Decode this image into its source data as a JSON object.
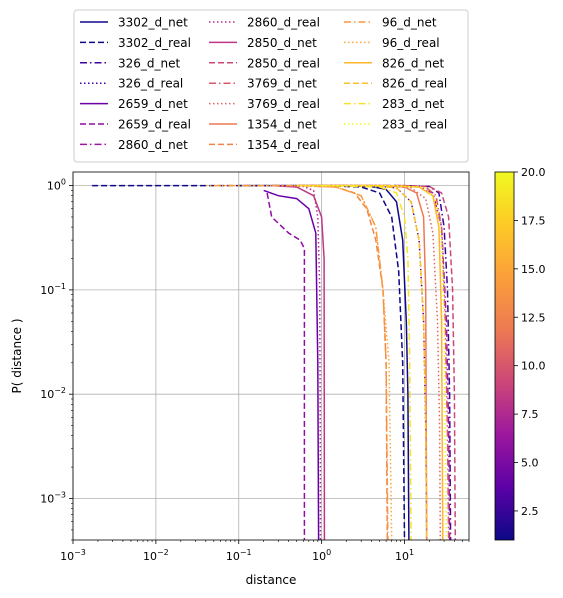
{
  "chart_data": {
    "type": "line",
    "xlabel": "distance",
    "ylabel": "P( distance )",
    "xscale": "log",
    "yscale": "log",
    "xlim": [
      0.001,
      60
    ],
    "ylim": [
      0.0004,
      1.35
    ],
    "grid": true,
    "legend_placement": "top, outside plot, 3 columns",
    "x_ticks": [
      {
        "value": 0.001,
        "label": "10",
        "exp": "−3"
      },
      {
        "value": 0.01,
        "label": "10",
        "exp": "−2"
      },
      {
        "value": 0.1,
        "label": "10",
        "exp": "−1"
      },
      {
        "value": 1,
        "label": "10",
        "exp": "0"
      },
      {
        "value": 10,
        "label": "10",
        "exp": "1"
      }
    ],
    "y_ticks": [
      {
        "value": 0.001,
        "label": "10",
        "exp": "−3"
      },
      {
        "value": 0.01,
        "label": "10",
        "exp": "−2"
      },
      {
        "value": 0.1,
        "label": "10",
        "exp": "−1"
      },
      {
        "value": 1,
        "label": "10",
        "exp": "0"
      }
    ],
    "colorbar": {
      "min": 1,
      "max": 20,
      "colormap": "plasma",
      "ticks": [
        "2.5",
        "5.0",
        "7.5",
        "10.0",
        "12.5",
        "15.0",
        "17.5",
        "20.0"
      ],
      "tick_values": [
        2.5,
        5.0,
        7.5,
        10.0,
        12.5,
        15.0,
        17.5,
        20.0
      ]
    },
    "series": [
      {
        "name": "3302_d_net",
        "color": "#0d0887",
        "dash": "solid",
        "points": [
          [
            0.1,
            1.0
          ],
          [
            2.0,
            1.0
          ],
          [
            4.0,
            0.98
          ],
          [
            6.0,
            0.92
          ],
          [
            8.0,
            0.7
          ],
          [
            9.5,
            0.3
          ],
          [
            10.5,
            0.05
          ],
          [
            11.0,
            0.01
          ],
          [
            11.3,
            0.0004
          ]
        ]
      },
      {
        "name": "3302_d_real",
        "color": "#0d0887",
        "dash": "dashed",
        "points": [
          [
            0.0017,
            1.0
          ],
          [
            1.0,
            1.0
          ],
          [
            3.0,
            0.97
          ],
          [
            5.0,
            0.85
          ],
          [
            7.0,
            0.5
          ],
          [
            8.5,
            0.15
          ],
          [
            9.5,
            0.02
          ],
          [
            10.0,
            0.0004
          ]
        ]
      },
      {
        "name": "326_d_net",
        "color": "#3e049c",
        "dash": "dashdot",
        "points": [
          [
            1.0,
            1.0
          ],
          [
            10.0,
            1.0
          ],
          [
            20.0,
            0.98
          ],
          [
            26.0,
            0.85
          ],
          [
            30.0,
            0.4
          ],
          [
            33.0,
            0.1
          ],
          [
            35.0,
            0.01
          ],
          [
            36.0,
            0.0004
          ]
        ]
      },
      {
        "name": "326_d_real",
        "color": "#3e049c",
        "dash": "dotted",
        "points": [
          [
            0.5,
            1.0
          ],
          [
            4.0,
            1.0
          ],
          [
            8.0,
            0.95
          ],
          [
            12.0,
            0.7
          ],
          [
            15.0,
            0.3
          ],
          [
            17.0,
            0.05
          ],
          [
            18.0,
            0.005
          ],
          [
            18.5,
            0.0004
          ]
        ]
      },
      {
        "name": "2659_d_net",
        "color": "#6a00a8",
        "dash": "solid",
        "points": [
          [
            0.2,
            0.9
          ],
          [
            0.3,
            0.8
          ],
          [
            0.5,
            0.75
          ],
          [
            0.7,
            0.6
          ],
          [
            0.85,
            0.35
          ],
          [
            0.9,
            0.02
          ],
          [
            0.92,
            0.0004
          ]
        ]
      },
      {
        "name": "2659_d_real",
        "color": "#8f0da4",
        "dash": "dashed",
        "points": [
          [
            0.22,
            0.85
          ],
          [
            0.25,
            0.5
          ],
          [
            0.4,
            0.35
          ],
          [
            0.55,
            0.3
          ],
          [
            0.62,
            0.25
          ],
          [
            0.62,
            0.0004
          ]
        ]
      },
      {
        "name": "2860_d_net",
        "color": "#9c179e",
        "dash": "dashdot",
        "points": [
          [
            0.5,
            1.0
          ],
          [
            8.0,
            1.0
          ],
          [
            15.0,
            0.97
          ],
          [
            22.0,
            0.85
          ],
          [
            28.0,
            0.4
          ],
          [
            32.0,
            0.05
          ],
          [
            34.0,
            0.005
          ],
          [
            35.0,
            0.0004
          ]
        ]
      },
      {
        "name": "2860_d_real",
        "color": "#b12a90",
        "dash": "dotted",
        "points": [
          [
            0.3,
            1.0
          ],
          [
            0.6,
            0.98
          ],
          [
            0.8,
            0.9
          ],
          [
            0.9,
            0.5
          ],
          [
            0.95,
            0.1
          ],
          [
            0.97,
            0.0004
          ]
        ]
      },
      {
        "name": "2850_d_net",
        "color": "#bd3786",
        "dash": "solid",
        "points": [
          [
            0.25,
            1.0
          ],
          [
            0.5,
            0.97
          ],
          [
            0.8,
            0.8
          ],
          [
            1.0,
            0.5
          ],
          [
            1.07,
            0.2
          ],
          [
            1.08,
            0.0004
          ]
        ]
      },
      {
        "name": "2850_d_real",
        "color": "#cc4778",
        "dash": "dashed",
        "points": [
          [
            1.0,
            1.0
          ],
          [
            10.0,
            1.0
          ],
          [
            20.0,
            0.98
          ],
          [
            28.0,
            0.85
          ],
          [
            34.0,
            0.5
          ],
          [
            38.0,
            0.1
          ],
          [
            40.0,
            0.01
          ],
          [
            41.0,
            0.0004
          ]
        ]
      },
      {
        "name": "3769_d_net",
        "color": "#d8576b",
        "dash": "dashdot",
        "points": [
          [
            0.5,
            1.0
          ],
          [
            10.0,
            1.0
          ],
          [
            18.0,
            0.97
          ],
          [
            24.0,
            0.8
          ],
          [
            28.0,
            0.4
          ],
          [
            31.0,
            0.05
          ],
          [
            33.0,
            0.004
          ],
          [
            34.0,
            0.0004
          ]
        ]
      },
      {
        "name": "3769_d_real",
        "color": "#e16462",
        "dash": "dotted",
        "points": [
          [
            0.3,
            1.0
          ],
          [
            6.0,
            1.0
          ],
          [
            12.0,
            0.95
          ],
          [
            18.0,
            0.75
          ],
          [
            22.0,
            0.35
          ],
          [
            25.0,
            0.05
          ],
          [
            26.5,
            0.005
          ],
          [
            27.0,
            0.0004
          ]
        ]
      },
      {
        "name": "1354_d_net",
        "color": "#ed7953",
        "dash": "solid",
        "points": [
          [
            0.5,
            1.0
          ],
          [
            6.0,
            1.0
          ],
          [
            10.0,
            0.97
          ],
          [
            14.0,
            0.85
          ],
          [
            17.0,
            0.5
          ],
          [
            18.0,
            0.1
          ],
          [
            18.5,
            0.0004
          ]
        ]
      },
      {
        "name": "1354_d_real",
        "color": "#f2844b",
        "dash": "dashed",
        "points": [
          [
            0.5,
            1.0
          ],
          [
            1.5,
            0.97
          ],
          [
            2.5,
            0.85
          ],
          [
            3.5,
            0.6
          ],
          [
            4.5,
            0.3
          ],
          [
            5.5,
            0.1
          ],
          [
            6.0,
            0.02
          ],
          [
            6.2,
            0.0004
          ]
        ]
      },
      {
        "name": "96_d_net",
        "color": "#f89540",
        "dash": "dashdot",
        "points": [
          [
            0.05,
            1.0
          ],
          [
            0.5,
            1.0
          ],
          [
            1.5,
            0.97
          ],
          [
            3.0,
            0.8
          ],
          [
            4.5,
            0.4
          ],
          [
            5.5,
            0.1
          ],
          [
            6.0,
            0.02
          ],
          [
            6.3,
            0.0004
          ]
        ]
      },
      {
        "name": "96_d_real",
        "color": "#fca636",
        "dash": "dotted",
        "points": [
          [
            0.04,
            1.0
          ],
          [
            0.4,
            1.0
          ],
          [
            1.5,
            0.97
          ],
          [
            3.0,
            0.8
          ],
          [
            4.5,
            0.4
          ],
          [
            5.5,
            0.1
          ],
          [
            6.5,
            0.02
          ],
          [
            7.0,
            0.0004
          ]
        ]
      },
      {
        "name": "826_d_net",
        "color": "#fdb42f",
        "dash": "solid",
        "points": [
          [
            0.5,
            1.0
          ],
          [
            6.0,
            1.0
          ],
          [
            15.0,
            0.97
          ],
          [
            22.0,
            0.8
          ],
          [
            26.0,
            0.4
          ],
          [
            28.0,
            0.05
          ],
          [
            29.0,
            0.0004
          ]
        ]
      },
      {
        "name": "826_d_real",
        "color": "#fec029",
        "dash": "dashed",
        "points": [
          [
            0.5,
            1.0
          ],
          [
            4.0,
            1.0
          ],
          [
            8.0,
            0.95
          ],
          [
            12.0,
            0.7
          ],
          [
            15.0,
            0.3
          ],
          [
            17.0,
            0.05
          ],
          [
            18.0,
            0.006
          ],
          [
            18.5,
            0.0004
          ]
        ]
      },
      {
        "name": "283_d_net",
        "color": "#f7e225",
        "dash": "dashdot",
        "points": [
          [
            1.0,
            1.0
          ],
          [
            5.0,
            0.97
          ],
          [
            8.0,
            0.85
          ],
          [
            10.0,
            0.5
          ],
          [
            11.0,
            0.2
          ],
          [
            11.5,
            0.03
          ],
          [
            12.0,
            0.0004
          ]
        ]
      },
      {
        "name": "283_d_real",
        "color": "#f0f921",
        "dash": "dotted",
        "points": [
          [
            0.5,
            1.0
          ],
          [
            8.0,
            1.0
          ],
          [
            18.0,
            0.95
          ],
          [
            24.0,
            0.7
          ],
          [
            28.0,
            0.3
          ],
          [
            30.0,
            0.05
          ],
          [
            32.0,
            0.0004
          ]
        ]
      }
    ]
  }
}
